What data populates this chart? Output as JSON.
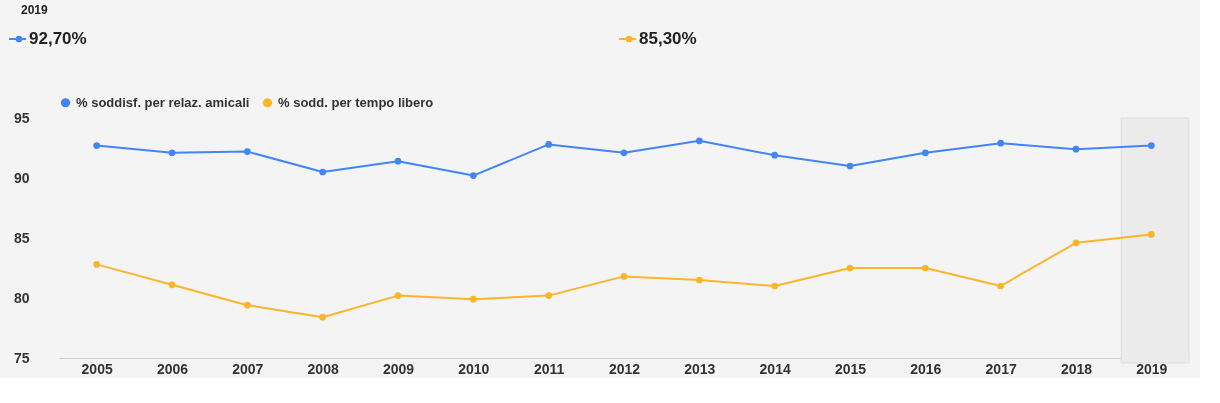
{
  "chart_data": {
    "type": "line",
    "x": [
      2005,
      2006,
      2007,
      2008,
      2009,
      2010,
      2011,
      2012,
      2013,
      2014,
      2015,
      2016,
      2017,
      2018,
      2019
    ],
    "series": [
      {
        "name": "% soddisf. per relaz. amicali",
        "color": "#4285f4",
        "values": [
          92.7,
          92.1,
          92.2,
          90.5,
          91.4,
          90.2,
          92.8,
          92.1,
          93.1,
          91.9,
          91.0,
          92.1,
          92.9,
          92.4,
          92.7
        ]
      },
      {
        "name": "% sodd. per tempo libero",
        "color": "#fbb52b",
        "values": [
          82.8,
          81.1,
          79.4,
          78.4,
          80.2,
          79.9,
          80.2,
          81.8,
          81.5,
          81.0,
          82.5,
          82.5,
          81.0,
          84.6,
          85.3
        ]
      }
    ],
    "xlim": [
      2004.5,
      2019.5
    ],
    "xticks": [
      2005,
      2006,
      2007,
      2008,
      2009,
      2010,
      2011,
      2012,
      2013,
      2014,
      2015,
      2016,
      2017,
      2018,
      2019
    ],
    "ylim": [
      75,
      95
    ],
    "yticks": [
      75,
      80,
      85,
      90,
      95
    ],
    "bands": [
      {
        "axis": "x",
        "from": 2018.6,
        "to": 2019.5,
        "color": "#ebebeb"
      }
    ],
    "annotations": [
      "2019",
      "92,70%",
      "85,30%"
    ],
    "marker": "circle",
    "line_style": "solid",
    "grid": false,
    "legend": "top left"
  }
}
